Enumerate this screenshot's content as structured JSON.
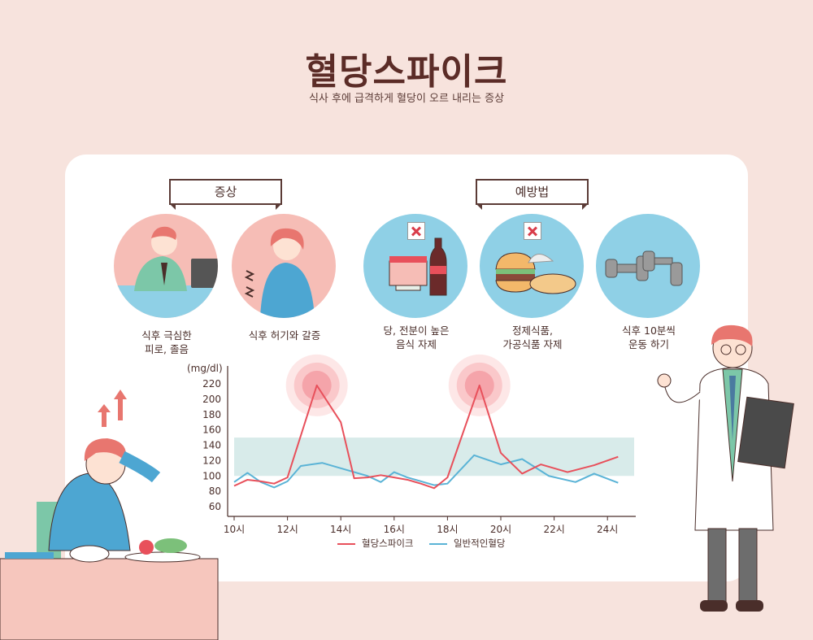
{
  "title": "혈당스파이크",
  "subtitle": "식사 후에 급격하게 혈당이 오르 내리는 증상",
  "sections": {
    "symptoms": "증상",
    "prevention": "예방법"
  },
  "items": [
    {
      "line1": "식후 극심한",
      "line2": "피로, 졸음"
    },
    {
      "line1": "식후 허기와 갈증",
      "line2": ""
    },
    {
      "line1": "당, 전분이 높은",
      "line2": "음식 자제"
    },
    {
      "line1": "정제식품,",
      "line2": "가공식품 자제"
    },
    {
      "line1": "식후 10분씩",
      "line2": "운동 하기"
    }
  ],
  "colors": {
    "spike": "#e8505b",
    "normal": "#5ab3d6",
    "band": "#d8ebea",
    "circle_pink": "#f6bdb6",
    "circle_blue": "#8fd0e6"
  },
  "chart_data": {
    "type": "line",
    "ylabel": "(mg/dl)",
    "ylim": [
      60,
      220
    ],
    "yticks": [
      60,
      80,
      100,
      120,
      140,
      160,
      180,
      200,
      220
    ],
    "xlim": [
      10,
      25
    ],
    "xticks": [
      10,
      12,
      14,
      16,
      18,
      20,
      22,
      24
    ],
    "xtick_labels": [
      "10시",
      "12시",
      "14시",
      "16시",
      "18시",
      "20시",
      "22시",
      "24시"
    ],
    "normal_range": [
      100,
      150
    ],
    "series": [
      {
        "name": "혈당스파이크",
        "x": [
          10,
          10.5,
          11,
          11.5,
          12,
          13.1,
          14,
          14.5,
          15,
          15.5,
          16,
          16.5,
          17,
          17.5,
          18,
          19.2,
          20,
          20.8,
          21.5,
          22.5,
          23.5,
          24.4
        ],
        "y": [
          87,
          95,
          93,
          90,
          98,
          218,
          170,
          97,
          98,
          101,
          98,
          95,
          90,
          84,
          98,
          218,
          130,
          103,
          115,
          105,
          114,
          125
        ]
      },
      {
        "name": "일반적인혈당",
        "x": [
          10,
          10.5,
          11,
          11.5,
          12,
          12.5,
          13.3,
          14,
          15,
          15.5,
          16,
          16.5,
          17.5,
          18,
          19,
          20,
          20.8,
          21.8,
          22.8,
          23.5,
          24.4
        ],
        "y": [
          92,
          104,
          92,
          85,
          93,
          113,
          117,
          110,
          100,
          92,
          105,
          98,
          88,
          90,
          127,
          115,
          122,
          100,
          92,
          103,
          91
        ]
      }
    ]
  }
}
